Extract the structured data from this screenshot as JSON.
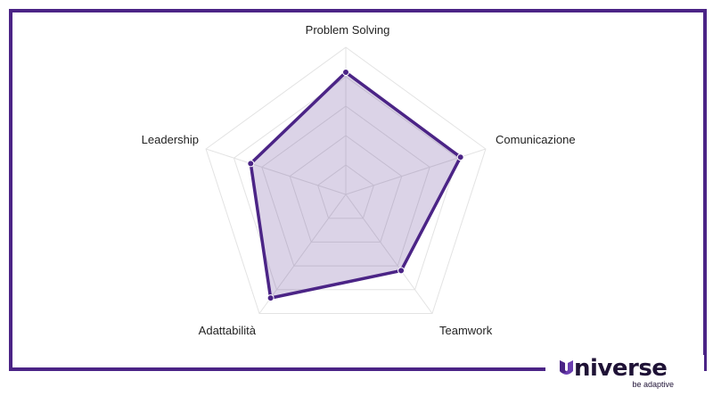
{
  "chart_data": {
    "type": "radar",
    "categories": [
      "Problem Solving",
      "Comunicazione",
      "Teamwork",
      "Adattabilità",
      "Leadership"
    ],
    "series": [
      {
        "values": [
          0.83,
          0.82,
          0.64,
          0.87,
          0.68
        ]
      }
    ],
    "range": [
      0,
      1
    ],
    "grid_levels": 5,
    "colors": {
      "line": "#4b2486",
      "fill": "#4b2486",
      "grid": "#e3e3e3"
    }
  },
  "brand": {
    "name_rest": "niverse",
    "tagline": "be adaptive",
    "frame_color": "#4b2486"
  }
}
